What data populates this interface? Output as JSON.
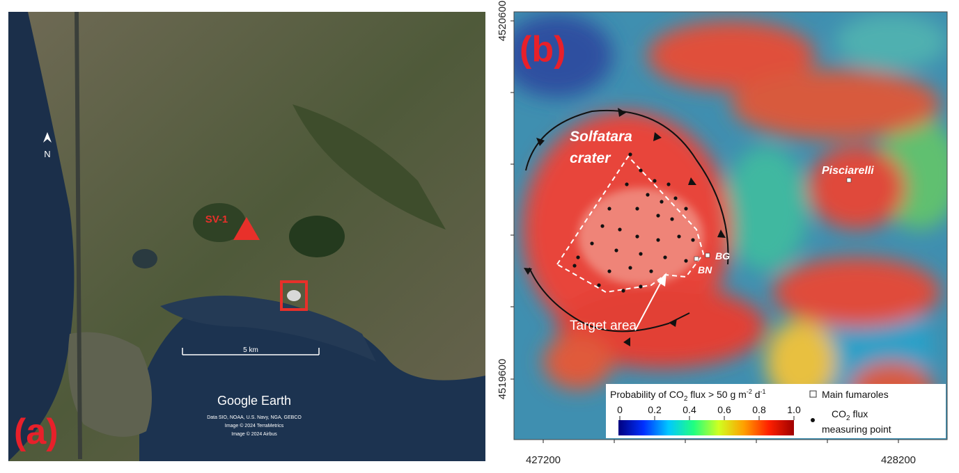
{
  "panel_a": {
    "label": "(a)",
    "north": "N",
    "site": "SV-1",
    "scale_bar": "5 km",
    "brand": "Google Earth",
    "credits": [
      "Data SIO, NOAA, U.S. Navy, NGA, GEBCO",
      "Image © 2024 TerraMetrics",
      "Image © 2024 Airbus"
    ]
  },
  "panel_b": {
    "label": "(b)",
    "yticks": [
      4520600,
      4519600
    ],
    "xticks": [
      427200,
      428200
    ],
    "crater": [
      "Solfatara",
      "crater"
    ],
    "place": "Pisciarelli",
    "fumarole_1": "BG",
    "fumarole_2": "BN",
    "target": "Target area",
    "legend": {
      "title": [
        "Probability of CO",
        "2",
        " flux > 50 g m",
        "-2",
        " d",
        "-1"
      ],
      "ticks": [
        0,
        0.2,
        0.4,
        0.6,
        0.8,
        {
          "value": 1,
          "label": "1.0"
        }
      ],
      "colors": [
        "#00007f",
        "#0030ff",
        "#00c8ff",
        "#20ff80",
        "#d0ff20",
        "#ffa000",
        "#ff2000",
        "#9f0000"
      ],
      "fumaroles": "Main fumaroles",
      "points": [
        "CO",
        "2",
        " flux",
        "measuring point"
      ]
    }
  }
}
